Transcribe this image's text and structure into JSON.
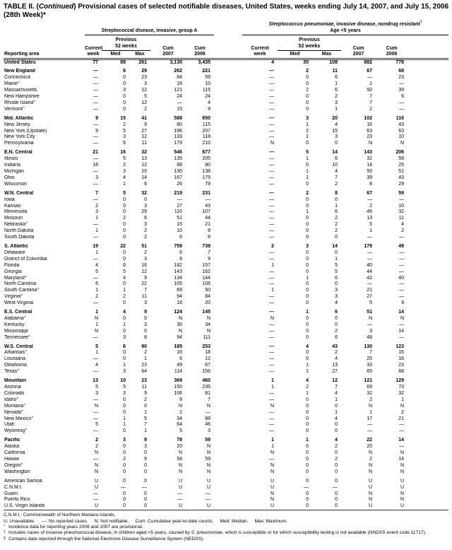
{
  "title": {
    "pre": "TABLE II. (",
    "italic": "Continued",
    "post": ") Provisional cases of selected notifiable diseases, United States, weeks ending July 14, 2007, and July 15, 2006 (28th Week)*"
  },
  "header": {
    "reporting_area_label": "Reporting area",
    "group_a_title": "Streptococcal disease, invasive, group A",
    "group_b_title_italic": "Streptococcus pneumoniae",
    "group_b_title_rest": ", invasive disease, nondrug resistant",
    "group_b_title_marker": "†",
    "group_b_subtitle": "Age <5 years",
    "cols": {
      "current": "Current",
      "week": "week",
      "previous": "Previous",
      "weeks52": "52 weeks",
      "med": "Med",
      "max": "Max",
      "cum": "Cum",
      "y2007": "2007",
      "y2006": "2006"
    }
  },
  "rows": [
    {
      "area": "United States",
      "bold": true,
      "values": [
        "77",
        "89",
        "261",
        "3,130",
        "3,435",
        "4",
        "30",
        "108",
        "882",
        "778"
      ]
    },
    {
      "area": "New England",
      "bold": true,
      "gap": true,
      "values": [
        "—",
        "6",
        "29",
        "262",
        "221",
        "—",
        "2",
        "11",
        "67",
        "68"
      ]
    },
    {
      "area": "Connecticut",
      "values": [
        "—",
        "0",
        "23",
        "84",
        "59",
        "—",
        "0",
        "6",
        "—",
        "23"
      ]
    },
    {
      "area": "Maine",
      "marker": "§",
      "values": [
        "—",
        "0",
        "3",
        "18",
        "10",
        "—",
        "0",
        "1",
        "1",
        "—"
      ]
    },
    {
      "area": "Massachusetts",
      "values": [
        "—",
        "3",
        "12",
        "121",
        "115",
        "—",
        "2",
        "6",
        "50",
        "39"
      ]
    },
    {
      "area": "New Hampshire",
      "values": [
        "—",
        "0",
        "5",
        "24",
        "24",
        "—",
        "0",
        "2",
        "7",
        "6"
      ]
    },
    {
      "area": "Rhode Island",
      "marker": "§",
      "values": [
        "—",
        "0",
        "12",
        "—",
        "4",
        "—",
        "0",
        "3",
        "7",
        "—"
      ]
    },
    {
      "area": "Vermont",
      "marker": "§",
      "values": [
        "—",
        "0",
        "2",
        "15",
        "9",
        "—",
        "0",
        "1",
        "2",
        "—"
      ]
    },
    {
      "area": "Mid. Atlantic",
      "bold": true,
      "gap": true,
      "values": [
        "9",
        "15",
        "41",
        "588",
        "650",
        "—",
        "3",
        "20",
        "102",
        "116"
      ]
    },
    {
      "area": "New Jersey",
      "values": [
        "—",
        "2",
        "9",
        "80",
        "115",
        "—",
        "1",
        "4",
        "16",
        "43"
      ]
    },
    {
      "area": "New York (Upstate)",
      "values": [
        "9",
        "5",
        "27",
        "196",
        "207",
        "—",
        "2",
        "15",
        "63",
        "63"
      ]
    },
    {
      "area": "New York City",
      "values": [
        "—",
        "3",
        "12",
        "133",
        "118",
        "—",
        "1",
        "3",
        "23",
        "10"
      ]
    },
    {
      "area": "Pennsylvania",
      "values": [
        "—",
        "6",
        "11",
        "179",
        "210",
        "N",
        "0",
        "0",
        "N",
        "N"
      ]
    },
    {
      "area": "E.N. Central",
      "bold": true,
      "gap": true,
      "values": [
        "21",
        "16",
        "32",
        "546",
        "677",
        "—",
        "5",
        "14",
        "143",
        "206"
      ]
    },
    {
      "area": "Illinois",
      "values": [
        "—",
        "5",
        "13",
        "135",
        "205",
        "—",
        "1",
        "6",
        "32",
        "58"
      ]
    },
    {
      "area": "Indiana",
      "values": [
        "18",
        "2",
        "12",
        "88",
        "80",
        "—",
        "0",
        "10",
        "14",
        "25"
      ]
    },
    {
      "area": "Michigan",
      "values": [
        "—",
        "3",
        "10",
        "130",
        "138",
        "—",
        "1",
        "4",
        "50",
        "51"
      ]
    },
    {
      "area": "Ohio",
      "values": [
        "3",
        "4",
        "14",
        "167",
        "175",
        "—",
        "1",
        "7",
        "39",
        "43"
      ]
    },
    {
      "area": "Wisconsin",
      "values": [
        "—",
        "1",
        "6",
        "26",
        "79",
        "—",
        "0",
        "2",
        "8",
        "29"
      ]
    },
    {
      "area": "W.N. Central",
      "bold": true,
      "gap": true,
      "values": [
        "7",
        "5",
        "32",
        "219",
        "231",
        "—",
        "2",
        "8",
        "67",
        "59"
      ]
    },
    {
      "area": "Iowa",
      "values": [
        "—",
        "0",
        "0",
        "—",
        "—",
        "—",
        "0",
        "0",
        "—",
        "—"
      ]
    },
    {
      "area": "Kansas",
      "values": [
        "2",
        "0",
        "3",
        "27",
        "43",
        "—",
        "0",
        "1",
        "2",
        "10"
      ]
    },
    {
      "area": "Minnesota",
      "values": [
        "3",
        "0",
        "29",
        "110",
        "107",
        "—",
        "1",
        "6",
        "46",
        "32"
      ]
    },
    {
      "area": "Missouri",
      "values": [
        "1",
        "2",
        "6",
        "51",
        "44",
        "—",
        "0",
        "2",
        "13",
        "11"
      ]
    },
    {
      "area": "Nebraska",
      "marker": "§",
      "values": [
        "—",
        "0",
        "3",
        "15",
        "21",
        "—",
        "0",
        "2",
        "5",
        "4"
      ]
    },
    {
      "area": "North Dakota",
      "values": [
        "1",
        "0",
        "2",
        "10",
        "8",
        "—",
        "0",
        "2",
        "1",
        "2"
      ]
    },
    {
      "area": "South Dakota",
      "values": [
        "—",
        "0",
        "2",
        "6",
        "8",
        "—",
        "0",
        "0",
        "—",
        "—"
      ]
    },
    {
      "area": "S. Atlantic",
      "bold": true,
      "gap": true,
      "values": [
        "19",
        "22",
        "51",
        "759",
        "739",
        "2",
        "3",
        "14",
        "179",
        "49"
      ]
    },
    {
      "area": "Delaware",
      "values": [
        "1",
        "0",
        "2",
        "6",
        "7",
        "—",
        "0",
        "0",
        "—",
        "—"
      ]
    },
    {
      "area": "District of Columbia",
      "values": [
        "—",
        "0",
        "3",
        "8",
        "9",
        "—",
        "0",
        "1",
        "—",
        "—"
      ]
    },
    {
      "area": "Florida",
      "values": [
        "4",
        "6",
        "16",
        "182",
        "157",
        "1",
        "0",
        "5",
        "40",
        "—"
      ]
    },
    {
      "area": "Georgia",
      "values": [
        "5",
        "5",
        "12",
        "143",
        "162",
        "—",
        "0",
        "5",
        "44",
        "—"
      ]
    },
    {
      "area": "Maryland",
      "marker": "§",
      "values": [
        "—",
        "4",
        "9",
        "134",
        "144",
        "—",
        "1",
        "6",
        "42",
        "40"
      ]
    },
    {
      "area": "North Carolina",
      "values": [
        "6",
        "0",
        "22",
        "105",
        "106",
        "—",
        "0",
        "0",
        "—",
        "—"
      ]
    },
    {
      "area": "South Carolina",
      "marker": "§",
      "values": [
        "1",
        "1",
        "7",
        "69",
        "50",
        "1",
        "0",
        "3",
        "21",
        "—"
      ]
    },
    {
      "area": "Virginia",
      "marker": "§",
      "values": [
        "2",
        "2",
        "11",
        "94",
        "84",
        "—",
        "0",
        "3",
        "27",
        "—"
      ]
    },
    {
      "area": "West Virginia",
      "values": [
        "—",
        "0",
        "3",
        "18",
        "20",
        "—",
        "0",
        "4",
        "5",
        "9"
      ]
    },
    {
      "area": "E.S. Central",
      "bold": true,
      "gap": true,
      "values": [
        "1",
        "4",
        "9",
        "124",
        "145",
        "—",
        "1",
        "6",
        "51",
        "14"
      ]
    },
    {
      "area": "Alabama",
      "marker": "§",
      "values": [
        "N",
        "0",
        "0",
        "N",
        "N",
        "N",
        "0",
        "0",
        "N",
        "N"
      ]
    },
    {
      "area": "Kentucky",
      "values": [
        "1",
        "1",
        "3",
        "30",
        "34",
        "—",
        "0",
        "0",
        "—",
        "—"
      ]
    },
    {
      "area": "Mississippi",
      "values": [
        "N",
        "0",
        "0",
        "N",
        "N",
        "—",
        "0",
        "2",
        "3",
        "14"
      ]
    },
    {
      "area": "Tennessee",
      "marker": "§",
      "values": [
        "—",
        "3",
        "8",
        "94",
        "111",
        "—",
        "0",
        "6",
        "48",
        "—"
      ]
    },
    {
      "area": "W.S. Central",
      "bold": true,
      "gap": true,
      "values": [
        "5",
        "6",
        "90",
        "185",
        "253",
        "—",
        "4",
        "43",
        "130",
        "123"
      ]
    },
    {
      "area": "Arkansas",
      "marker": "§",
      "values": [
        "1",
        "0",
        "2",
        "16",
        "18",
        "—",
        "0",
        "2",
        "7",
        "16"
      ]
    },
    {
      "area": "Louisiana",
      "values": [
        "—",
        "0",
        "1",
        "6",
        "12",
        "—",
        "0",
        "4",
        "25",
        "16"
      ]
    },
    {
      "area": "Oklahoma",
      "values": [
        "4",
        "1",
        "23",
        "49",
        "67",
        "—",
        "1",
        "13",
        "33",
        "23"
      ]
    },
    {
      "area": "Texas",
      "marker": "§",
      "values": [
        "—",
        "3",
        "64",
        "114",
        "156",
        "—",
        "1",
        "27",
        "65",
        "68"
      ]
    },
    {
      "area": "Mountain",
      "bold": true,
      "gap": true,
      "values": [
        "13",
        "10",
        "23",
        "369",
        "460",
        "1",
        "4",
        "12",
        "121",
        "129"
      ]
    },
    {
      "area": "Arizona",
      "values": [
        "5",
        "5",
        "11",
        "150",
        "235",
        "1",
        "2",
        "7",
        "69",
        "73"
      ]
    },
    {
      "area": "Colorado",
      "values": [
        "3",
        "3",
        "9",
        "106",
        "81",
        "—",
        "1",
        "4",
        "32",
        "32"
      ]
    },
    {
      "area": "Idaho",
      "marker": "§",
      "values": [
        "—",
        "0",
        "2",
        "8",
        "7",
        "—",
        "0",
        "1",
        "2",
        "1"
      ]
    },
    {
      "area": "Montana",
      "marker": "§",
      "values": [
        "N",
        "0",
        "0",
        "N",
        "N",
        "N",
        "0",
        "0",
        "N",
        "N"
      ]
    },
    {
      "area": "Nevada",
      "marker": "§",
      "values": [
        "—",
        "0",
        "1",
        "2",
        "—",
        "—",
        "0",
        "1",
        "1",
        "2"
      ]
    },
    {
      "area": "New Mexico",
      "marker": "§",
      "values": [
        "—",
        "1",
        "5",
        "34",
        "88",
        "—",
        "0",
        "4",
        "17",
        "21"
      ]
    },
    {
      "area": "Utah",
      "values": [
        "5",
        "1",
        "7",
        "64",
        "46",
        "—",
        "0",
        "0",
        "—",
        "—"
      ]
    },
    {
      "area": "Wyoming",
      "marker": "§",
      "values": [
        "—",
        "0",
        "1",
        "5",
        "3",
        "—",
        "0",
        "0",
        "—",
        "—"
      ]
    },
    {
      "area": "Pacific",
      "bold": true,
      "gap": true,
      "values": [
        "2",
        "3",
        "9",
        "78",
        "59",
        "1",
        "1",
        "4",
        "22",
        "14"
      ]
    },
    {
      "area": "Alaska",
      "values": [
        "2",
        "0",
        "3",
        "20",
        "N",
        "1",
        "0",
        "2",
        "20",
        "—"
      ]
    },
    {
      "area": "California",
      "values": [
        "N",
        "0",
        "0",
        "N",
        "N",
        "N",
        "0",
        "0",
        "N",
        "N"
      ]
    },
    {
      "area": "Hawaii",
      "values": [
        "—",
        "2",
        "9",
        "58",
        "59",
        "—",
        "0",
        "2",
        "2",
        "14"
      ]
    },
    {
      "area": "Oregon",
      "marker": "§",
      "values": [
        "N",
        "0",
        "0",
        "N",
        "N",
        "N",
        "0",
        "0",
        "N",
        "N"
      ]
    },
    {
      "area": "Washington",
      "values": [
        "N",
        "0",
        "0",
        "N",
        "N",
        "N",
        "0",
        "0",
        "N",
        "N"
      ]
    },
    {
      "area": "American Samoa",
      "gap": true,
      "values": [
        "U",
        "0",
        "0",
        "U",
        "U",
        "U",
        "0",
        "0",
        "U",
        "U"
      ]
    },
    {
      "area": "C.N.M.I.",
      "values": [
        "U",
        "—",
        "—",
        "U",
        "U",
        "U",
        "—",
        "—",
        "U",
        "U"
      ]
    },
    {
      "area": "Guam",
      "values": [
        "—",
        "0",
        "0",
        "—",
        "—",
        "N",
        "0",
        "0",
        "N",
        "N"
      ]
    },
    {
      "area": "Puerto Rico",
      "values": [
        "—",
        "0",
        "0",
        "—",
        "—",
        "N",
        "0",
        "0",
        "N",
        "N"
      ]
    },
    {
      "area": "U.S. Virgin Islands",
      "values": [
        "U",
        "0",
        "0",
        "U",
        "U",
        "U",
        "0",
        "0",
        "U",
        "U"
      ]
    }
  ],
  "footnotes": {
    "cnmi": "C.N.M.I.: Commonwealth of Northern Mariana Islands.",
    "legend": [
      "U: Unavailable.",
      "—: No reported cases.",
      "N: Not notifiable.",
      "Cum: Cumulative year-to-date counts.",
      "Med: Median.",
      "Max: Maximum."
    ],
    "notes": [
      {
        "marker": "*",
        "text": "Incidence data for reporting years 2006 and 2007 are provisional."
      },
      {
        "marker": "†",
        "pre": "Includes cases of invasive pneumococcal disease, in children aged <5 years, caused by ",
        "italic": "S. pneumoniae",
        "post": ", which is susceptible or for which susceptibility testing is not available (NNDSS event code 11717)."
      },
      {
        "marker": "§",
        "text": "Contains data reported through the National Electronic Disease Surveillance System (NEDSS)."
      }
    ]
  }
}
